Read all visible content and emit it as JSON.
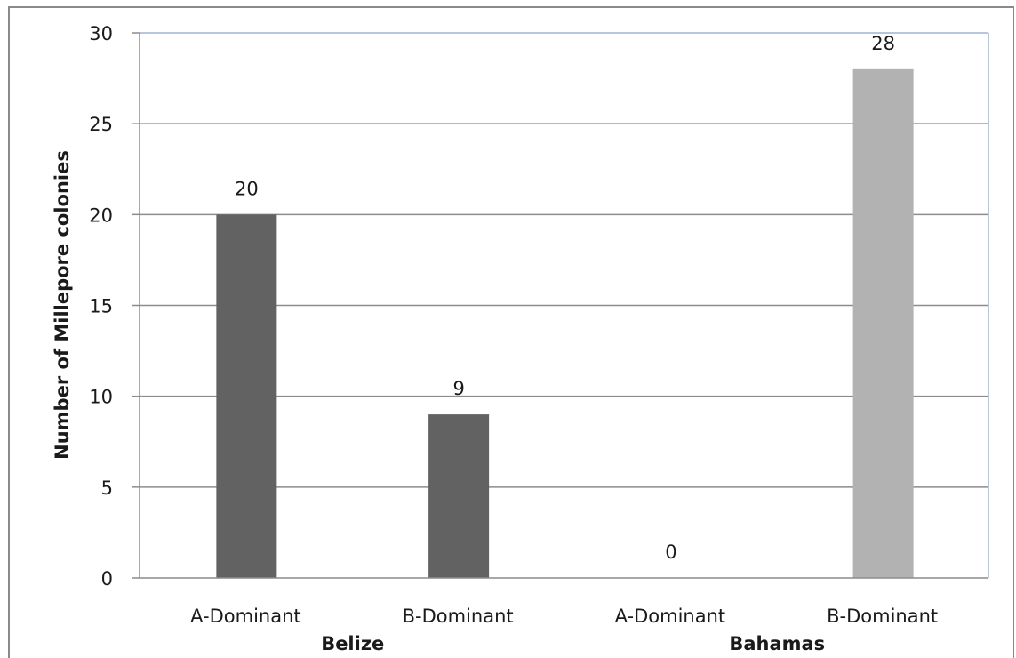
{
  "chart_data": {
    "type": "bar",
    "ylabel": "Number of Millepore  colonies",
    "ylim": [
      0,
      30
    ],
    "yticks": [
      0,
      5,
      10,
      15,
      20,
      25,
      30
    ],
    "grid": true,
    "legend": "none",
    "categories": [
      "A-Dominant",
      "B-Dominant",
      "A-Dominant",
      "B-Dominant"
    ],
    "groups": [
      {
        "name": "Belize",
        "categories": [
          0,
          1
        ]
      },
      {
        "name": "Bahamas",
        "categories": [
          2,
          3
        ]
      }
    ],
    "values": [
      20,
      9,
      0,
      28
    ],
    "data_labels": [
      "20",
      "9",
      "0",
      "28"
    ],
    "colors": [
      "#626262",
      "#626262",
      "#626262",
      "#b2b2b2"
    ]
  }
}
